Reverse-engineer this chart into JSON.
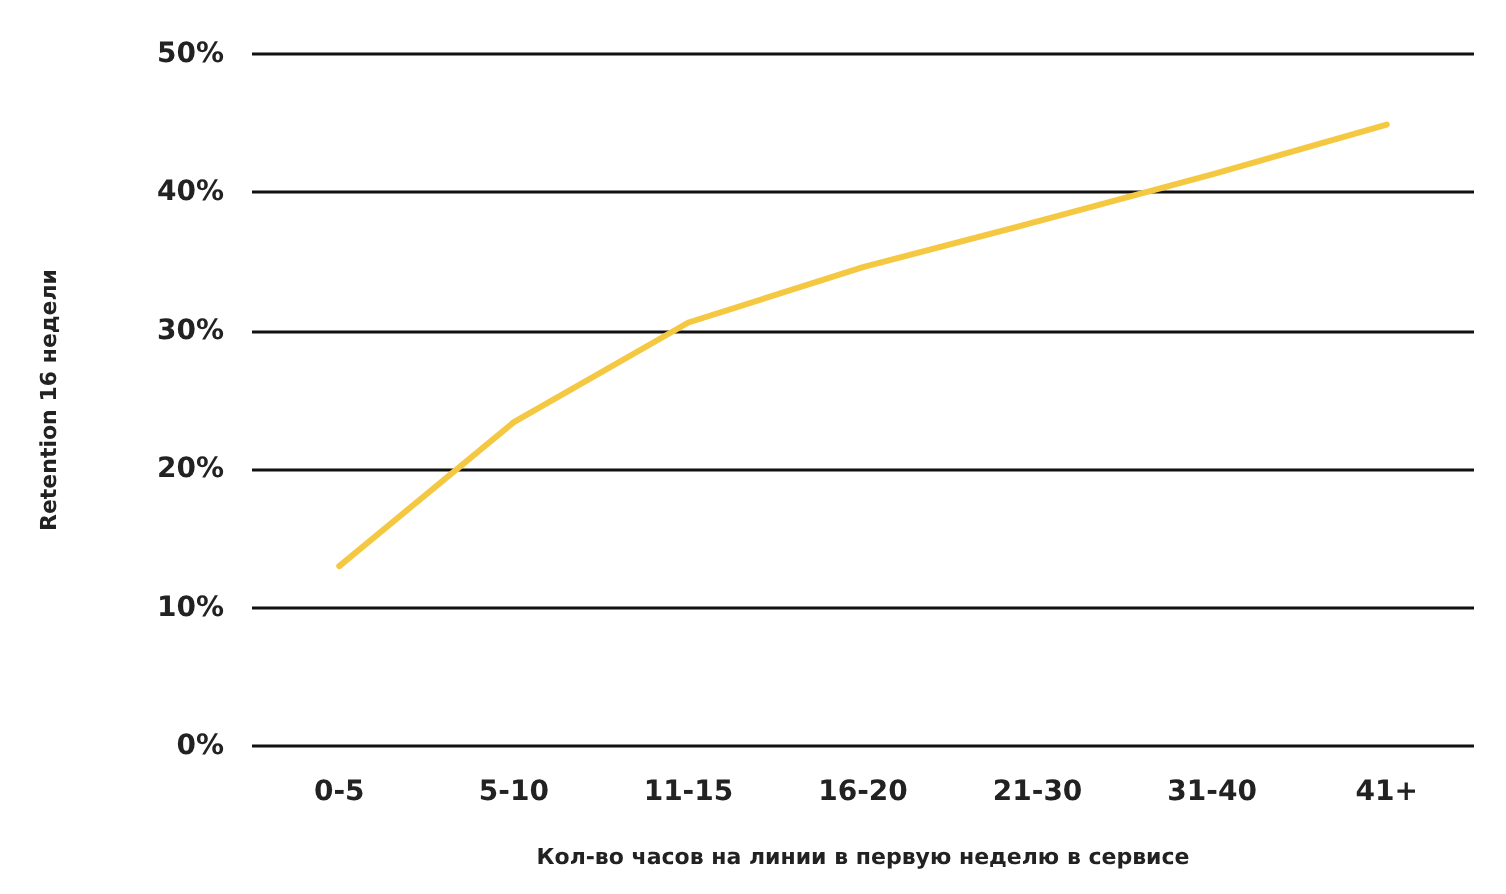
{
  "chart_data": {
    "type": "line",
    "xlabel": "Кол-во часов на линии в первую неделю в сервисе",
    "ylabel": "Retention 16 недели",
    "categories": [
      "0-5",
      "5-10",
      "11-15",
      "16-20",
      "21-30",
      "31-40",
      "41+"
    ],
    "series": [
      {
        "color": "#f5c842",
        "values": [
          13.0,
          23.4,
          30.6,
          34.6,
          37.9,
          41.3,
          44.9
        ]
      }
    ],
    "ylim": [
      0,
      50
    ],
    "yticks": [
      {
        "value": 0,
        "label": "0%"
      },
      {
        "value": 10,
        "label": "10%"
      },
      {
        "value": 20,
        "label": "20%"
      },
      {
        "value": 30,
        "label": "30%"
      },
      {
        "value": 40,
        "label": "40%"
      },
      {
        "value": 50,
        "label": "50%"
      }
    ],
    "grid": "y",
    "marker": "none",
    "line_style": "solid"
  }
}
